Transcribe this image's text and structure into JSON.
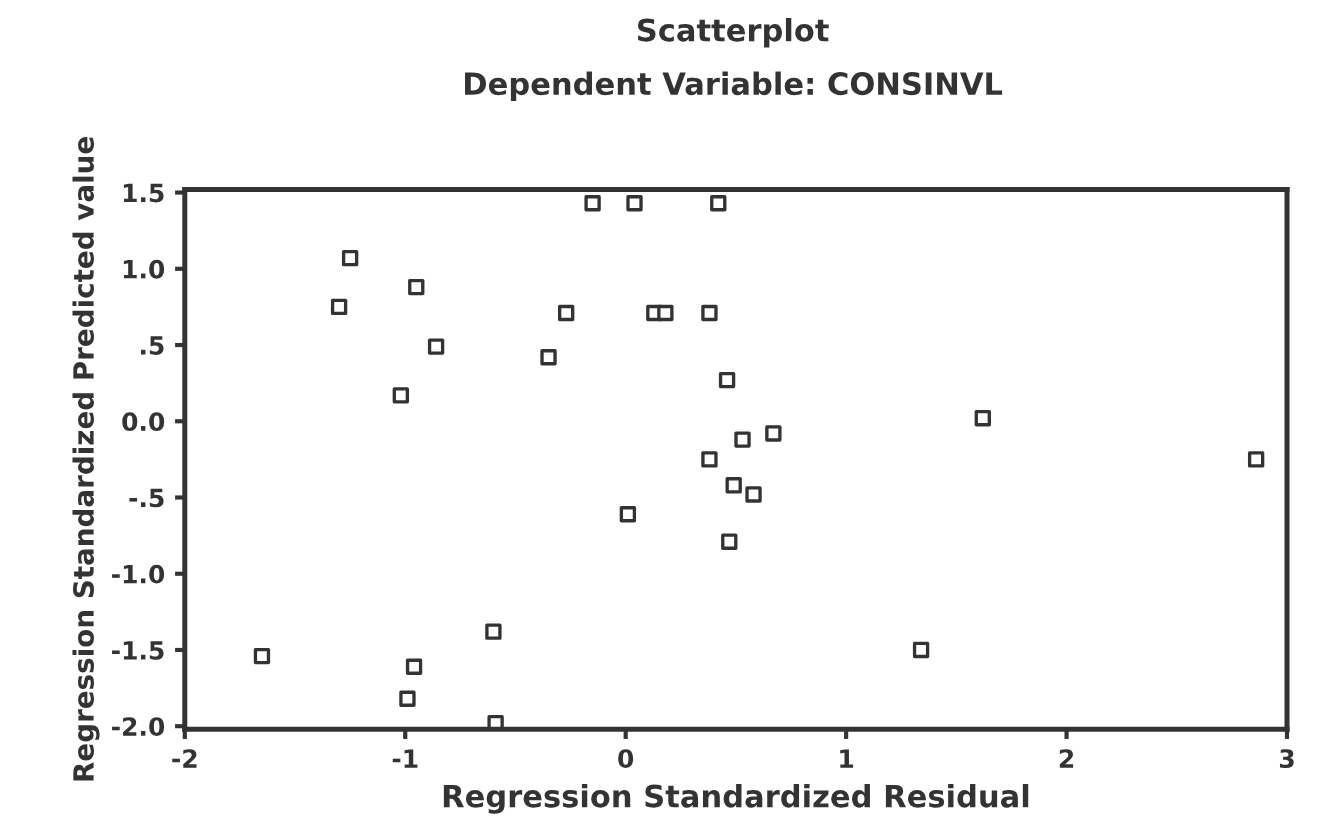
{
  "chart_data": {
    "type": "scatter",
    "title": "Scatterplot",
    "subtitle": "Dependent Variable: CONSINVL",
    "xlabel": "Regression Standardized Residual",
    "ylabel": "Regression Standardized Predicted value",
    "x": [
      -0.15,
      0.04,
      0.42,
      -1.25,
      -0.95,
      -1.3,
      -0.27,
      0.13,
      0.18,
      0.38,
      -0.86,
      -0.35,
      -1.02,
      0.46,
      1.62,
      0.53,
      0.67,
      0.38,
      2.86,
      0.49,
      0.58,
      0.01,
      0.47,
      -1.65,
      -0.6,
      -0.96,
      -0.99,
      -0.59,
      1.34
    ],
    "values": [
      1.43,
      1.43,
      1.43,
      1.07,
      0.88,
      0.75,
      0.71,
      0.71,
      0.71,
      0.71,
      0.49,
      0.42,
      0.17,
      0.27,
      0.02,
      -0.12,
      -0.08,
      -0.25,
      -0.25,
      -0.42,
      -0.48,
      -0.61,
      -0.79,
      -1.54,
      -1.38,
      -1.61,
      -1.82,
      -1.98,
      -1.5
    ],
    "color": "#333333",
    "marker": "square",
    "xlim": [
      -2,
      3
    ],
    "xticks": [
      -2,
      -1,
      0,
      1,
      2,
      3
    ],
    "ylim": [
      -2.02,
      1.52
    ],
    "yticks": [
      {
        "value": 1.5,
        "label": "1.5"
      },
      {
        "value": 1.0,
        "label": "1.0"
      },
      {
        "value": 0.5,
        "label": ".5"
      },
      {
        "value": 0.0,
        "label": "0.0"
      },
      {
        "value": -0.5,
        "label": "-.5"
      },
      {
        "value": -1.0,
        "label": "-1.0"
      },
      {
        "value": -1.5,
        "label": "-1.5"
      },
      {
        "value": -2.0,
        "label": "-2.0"
      }
    ],
    "grid": false,
    "legend": false
  }
}
